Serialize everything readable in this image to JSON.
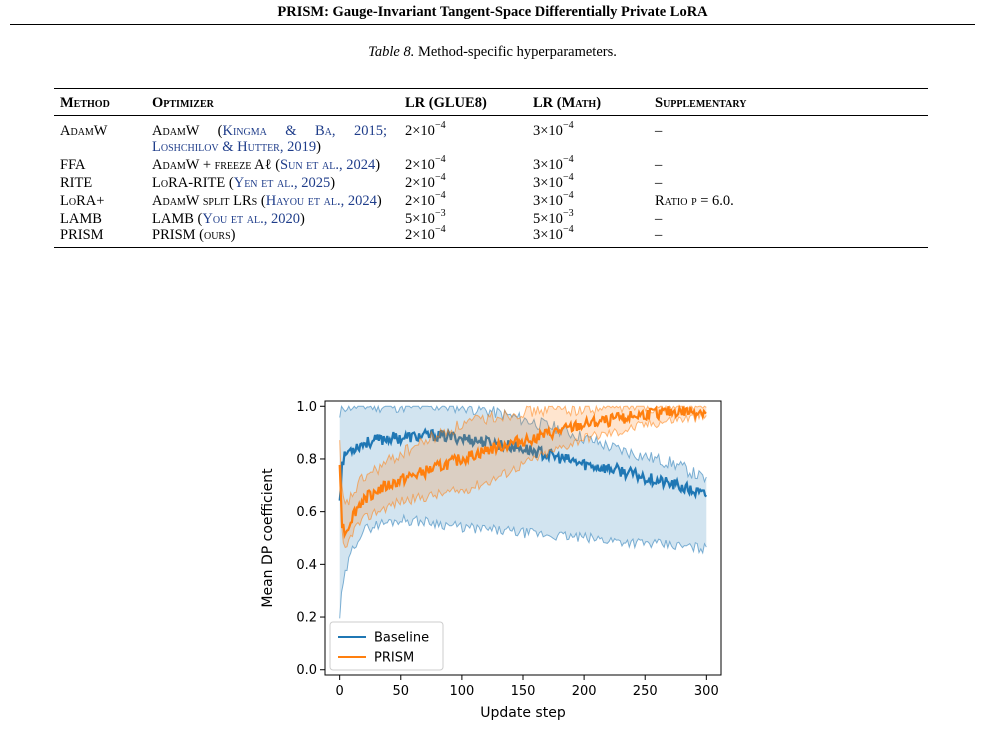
{
  "header": {
    "running_title": "PRISM: Gauge-Invariant Tangent-Space Differentially Private LoRA"
  },
  "table": {
    "caption_label": "Table 8.",
    "caption_text": "Method-specific hyperparameters.",
    "columns": [
      "Method",
      "Optimizer",
      "LR (GLUE8)",
      "LR (Math)",
      "Supplementary"
    ],
    "rows": [
      {
        "method": "AdamW",
        "optimizer": "AdamW (",
        "cite": "Kingma & Ba, 2015; Loshchilov & Hutter, 2019",
        "optimizer_tail": ")",
        "lr_glue_mant": "2×10",
        "lr_glue_exp": "−4",
        "lr_math_mant": "3×10",
        "lr_math_exp": "−4",
        "supp": "–"
      },
      {
        "method": "FFA",
        "optimizer": "AdamW + freeze Aℓ (",
        "cite": "Sun et al., 2024",
        "optimizer_tail": ")",
        "lr_glue_mant": "2×10",
        "lr_glue_exp": "−4",
        "lr_math_mant": "3×10",
        "lr_math_exp": "−4",
        "supp": "–"
      },
      {
        "method": "RITE",
        "optimizer": "LoRA-RITE (",
        "cite": "Yen et al., 2025",
        "optimizer_tail": ")",
        "lr_glue_mant": "2×10",
        "lr_glue_exp": "−4",
        "lr_math_mant": "3×10",
        "lr_math_exp": "−4",
        "supp": "–"
      },
      {
        "method": "LoRA+",
        "optimizer": "AdamW split LRs (",
        "cite": "Hayou et al., 2024",
        "optimizer_tail": ")",
        "lr_glue_mant": "2×10",
        "lr_glue_exp": "−4",
        "lr_math_mant": "3×10",
        "lr_math_exp": "−4",
        "supp": "Ratio ρ = 6.0."
      },
      {
        "method": "LAMB",
        "optimizer": "LAMB (",
        "cite": "You et al., 2020",
        "optimizer_tail": ")",
        "lr_glue_mant": "5×10",
        "lr_glue_exp": "−3",
        "lr_math_mant": "5×10",
        "lr_math_exp": "−3",
        "supp": "–"
      },
      {
        "method": "PRISM",
        "optimizer": "PRISM (ours)",
        "cite": "",
        "optimizer_tail": "",
        "lr_glue_mant": "2×10",
        "lr_glue_exp": "−4",
        "lr_math_mant": "3×10",
        "lr_math_exp": "−4",
        "supp": "–"
      }
    ]
  },
  "chart_data": {
    "type": "line",
    "xlabel": "Update step",
    "ylabel": "Mean DP coefficient",
    "xlim": [
      -12,
      312
    ],
    "ylim": [
      -0.02,
      1.02
    ],
    "xticks": [
      0,
      50,
      100,
      150,
      200,
      250,
      300
    ],
    "yticks": [
      0.0,
      0.2,
      0.4,
      0.6,
      0.8,
      1.0
    ],
    "xtick_labels": [
      "0",
      "50",
      "100",
      "150",
      "200",
      "250",
      "300"
    ],
    "ytick_labels": [
      "0.0",
      "0.2",
      "0.4",
      "0.6",
      "0.8",
      "1.0"
    ],
    "grid": false,
    "legend_position": "lower-left",
    "series": [
      {
        "name": "Baseline",
        "color": "#1f77b4",
        "x": [
          0,
          2,
          5,
          10,
          15,
          20,
          30,
          40,
          50,
          75,
          100,
          125,
          150,
          175,
          200,
          225,
          250,
          275,
          300
        ],
        "mean": [
          0.65,
          0.78,
          0.82,
          0.84,
          0.85,
          0.86,
          0.87,
          0.88,
          0.88,
          0.89,
          0.88,
          0.86,
          0.84,
          0.81,
          0.78,
          0.76,
          0.73,
          0.7,
          0.66
        ],
        "upper": [
          0.95,
          1.0,
          1.0,
          1.0,
          1.0,
          1.0,
          1.0,
          1.0,
          1.0,
          1.0,
          1.0,
          0.98,
          0.95,
          0.92,
          0.88,
          0.84,
          0.81,
          0.78,
          0.72
        ],
        "lower": [
          0.2,
          0.3,
          0.37,
          0.45,
          0.5,
          0.53,
          0.55,
          0.56,
          0.57,
          0.56,
          0.54,
          0.53,
          0.52,
          0.51,
          0.5,
          0.49,
          0.48,
          0.47,
          0.46
        ]
      },
      {
        "name": "PRISM",
        "color": "#ff7f0e",
        "x": [
          0,
          2,
          5,
          10,
          15,
          20,
          30,
          40,
          50,
          75,
          100,
          125,
          150,
          175,
          200,
          225,
          250,
          275,
          300
        ],
        "mean": [
          0.8,
          0.55,
          0.52,
          0.58,
          0.62,
          0.65,
          0.68,
          0.7,
          0.72,
          0.76,
          0.8,
          0.84,
          0.87,
          0.9,
          0.93,
          0.95,
          0.97,
          0.98,
          0.98
        ],
        "upper": [
          0.85,
          0.65,
          0.62,
          0.66,
          0.7,
          0.73,
          0.76,
          0.79,
          0.82,
          0.88,
          0.93,
          0.96,
          0.98,
          0.99,
          0.99,
          1.0,
          1.0,
          1.0,
          1.0
        ],
        "lower": [
          0.75,
          0.47,
          0.45,
          0.52,
          0.55,
          0.57,
          0.6,
          0.62,
          0.64,
          0.66,
          0.68,
          0.72,
          0.78,
          0.83,
          0.88,
          0.9,
          0.93,
          0.95,
          0.96
        ]
      }
    ]
  }
}
